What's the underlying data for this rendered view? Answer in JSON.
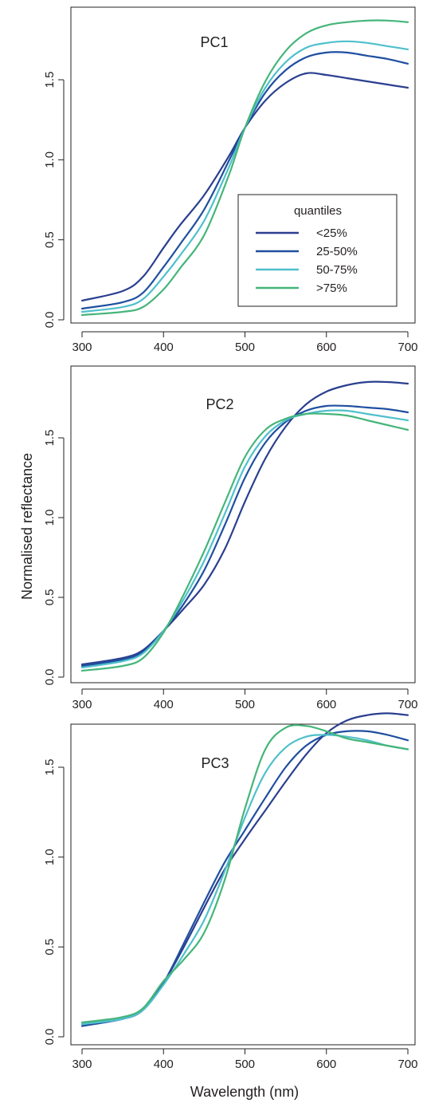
{
  "figure": {
    "ylabel": "Normalised reflectance",
    "xlabel": "Wavelength (nm)"
  },
  "legend": {
    "title": "quantiles",
    "entries": [
      "<25%",
      "25-50%",
      "50-75%",
      ">75%"
    ]
  },
  "colors": {
    "lt25": "#2a3f8f",
    "25to50": "#1f4fa0",
    "50to75": "#4fc0cc",
    "gt75": "#45b57a",
    "axis": "#231f20"
  },
  "chart_data": [
    {
      "type": "line",
      "title": "PC1",
      "xticks": [
        "300",
        "400",
        "500",
        "600",
        "700"
      ],
      "yticks": [
        "0.0",
        "0.5",
        "1.0",
        "1.5"
      ],
      "xlim": [
        300,
        700
      ],
      "ylim": [
        0,
        1.8
      ],
      "legend_position": "bottom-right",
      "series": [
        {
          "name": "<25%",
          "color_key": "lt25",
          "x": [
            300,
            350,
            375,
            400,
            420,
            450,
            480,
            500,
            525,
            550,
            575,
            600,
            625,
            650,
            675,
            700
          ],
          "y": [
            0.12,
            0.18,
            0.27,
            0.45,
            0.59,
            0.78,
            1.02,
            1.2,
            1.37,
            1.48,
            1.54,
            1.53,
            1.51,
            1.49,
            1.47,
            1.45
          ]
        },
        {
          "name": "25-50%",
          "color_key": "25to50",
          "x": [
            300,
            350,
            375,
            400,
            420,
            450,
            480,
            500,
            525,
            550,
            575,
            600,
            625,
            650,
            675,
            700
          ],
          "y": [
            0.07,
            0.11,
            0.17,
            0.33,
            0.47,
            0.69,
            0.99,
            1.2,
            1.42,
            1.56,
            1.64,
            1.67,
            1.67,
            1.65,
            1.63,
            1.6
          ]
        },
        {
          "name": "50-75%",
          "color_key": "50to75",
          "x": [
            300,
            350,
            375,
            400,
            420,
            450,
            480,
            500,
            525,
            550,
            575,
            600,
            625,
            650,
            675,
            700
          ],
          "y": [
            0.05,
            0.08,
            0.13,
            0.27,
            0.4,
            0.62,
            0.95,
            1.2,
            1.45,
            1.61,
            1.7,
            1.73,
            1.74,
            1.73,
            1.71,
            1.69
          ]
        },
        {
          "name": ">75%",
          "color_key": "gt75",
          "x": [
            300,
            350,
            375,
            400,
            420,
            450,
            480,
            500,
            525,
            550,
            575,
            600,
            625,
            650,
            675,
            700
          ],
          "y": [
            0.03,
            0.05,
            0.08,
            0.19,
            0.32,
            0.53,
            0.9,
            1.2,
            1.49,
            1.68,
            1.79,
            1.84,
            1.86,
            1.87,
            1.87,
            1.86
          ]
        }
      ]
    },
    {
      "type": "line",
      "title": "PC2",
      "xticks": [
        "300",
        "400",
        "500",
        "600",
        "700"
      ],
      "yticks": [
        "0.0",
        "0.5",
        "1.0",
        "1.5"
      ],
      "xlim": [
        300,
        700
      ],
      "ylim": [
        0,
        1.8
      ],
      "series": [
        {
          "name": "<25%",
          "color_key": "lt25",
          "x": [
            300,
            350,
            375,
            400,
            425,
            450,
            475,
            500,
            525,
            550,
            575,
            600,
            625,
            650,
            675,
            700
          ],
          "y": [
            0.08,
            0.12,
            0.17,
            0.29,
            0.43,
            0.58,
            0.8,
            1.1,
            1.37,
            1.57,
            1.71,
            1.79,
            1.83,
            1.85,
            1.85,
            1.84
          ]
        },
        {
          "name": "25-50%",
          "color_key": "25to50",
          "x": [
            300,
            350,
            375,
            400,
            425,
            450,
            475,
            500,
            525,
            550,
            575,
            600,
            625,
            650,
            675,
            700
          ],
          "y": [
            0.07,
            0.11,
            0.16,
            0.29,
            0.46,
            0.67,
            0.95,
            1.25,
            1.47,
            1.6,
            1.67,
            1.7,
            1.7,
            1.69,
            1.68,
            1.66
          ]
        },
        {
          "name": "50-75%",
          "color_key": "50to75",
          "x": [
            300,
            350,
            375,
            400,
            425,
            450,
            475,
            500,
            525,
            550,
            575,
            600,
            625,
            650,
            675,
            700
          ],
          "y": [
            0.06,
            0.1,
            0.15,
            0.29,
            0.49,
            0.73,
            1.02,
            1.32,
            1.51,
            1.61,
            1.65,
            1.67,
            1.67,
            1.65,
            1.63,
            1.61
          ]
        },
        {
          "name": ">75%",
          "color_key": "gt75",
          "x": [
            300,
            350,
            375,
            400,
            425,
            450,
            475,
            500,
            525,
            550,
            575,
            600,
            625,
            650,
            675,
            700
          ],
          "y": [
            0.04,
            0.07,
            0.12,
            0.28,
            0.52,
            0.79,
            1.09,
            1.38,
            1.55,
            1.62,
            1.65,
            1.65,
            1.64,
            1.61,
            1.58,
            1.55
          ]
        }
      ]
    },
    {
      "type": "line",
      "title": "PC3",
      "xticks": [
        "300",
        "400",
        "500",
        "600",
        "700"
      ],
      "yticks": [
        "0.0",
        "0.5",
        "1.0",
        "1.5"
      ],
      "xlim": [
        300,
        700
      ],
      "ylim": [
        0,
        1.8
      ],
      "series": [
        {
          "name": "<25%",
          "color_key": "lt25",
          "x": [
            300,
            350,
            375,
            400,
            425,
            450,
            475,
            500,
            525,
            550,
            575,
            600,
            625,
            650,
            675,
            700
          ],
          "y": [
            0.07,
            0.1,
            0.15,
            0.3,
            0.5,
            0.72,
            0.93,
            1.1,
            1.26,
            1.42,
            1.57,
            1.69,
            1.76,
            1.79,
            1.8,
            1.79
          ]
        },
        {
          "name": "25-50%",
          "color_key": "25to50",
          "x": [
            300,
            350,
            375,
            400,
            425,
            450,
            475,
            500,
            525,
            550,
            575,
            600,
            625,
            650,
            675,
            700
          ],
          "y": [
            0.06,
            0.1,
            0.15,
            0.3,
            0.52,
            0.75,
            0.97,
            1.15,
            1.33,
            1.5,
            1.62,
            1.68,
            1.7,
            1.7,
            1.68,
            1.65
          ]
        },
        {
          "name": "50-75%",
          "color_key": "50to75",
          "x": [
            300,
            350,
            375,
            400,
            425,
            450,
            475,
            500,
            525,
            550,
            575,
            600,
            625,
            650,
            675,
            700
          ],
          "y": [
            0.07,
            0.1,
            0.15,
            0.29,
            0.46,
            0.65,
            0.92,
            1.22,
            1.47,
            1.61,
            1.67,
            1.68,
            1.67,
            1.65,
            1.62,
            1.6
          ]
        },
        {
          "name": ">75%",
          "color_key": "gt75",
          "x": [
            300,
            350,
            375,
            400,
            425,
            450,
            475,
            500,
            525,
            550,
            575,
            600,
            625,
            650,
            675,
            700
          ],
          "y": [
            0.08,
            0.11,
            0.16,
            0.31,
            0.43,
            0.58,
            0.87,
            1.27,
            1.6,
            1.72,
            1.73,
            1.7,
            1.66,
            1.64,
            1.62,
            1.6
          ]
        }
      ]
    }
  ]
}
